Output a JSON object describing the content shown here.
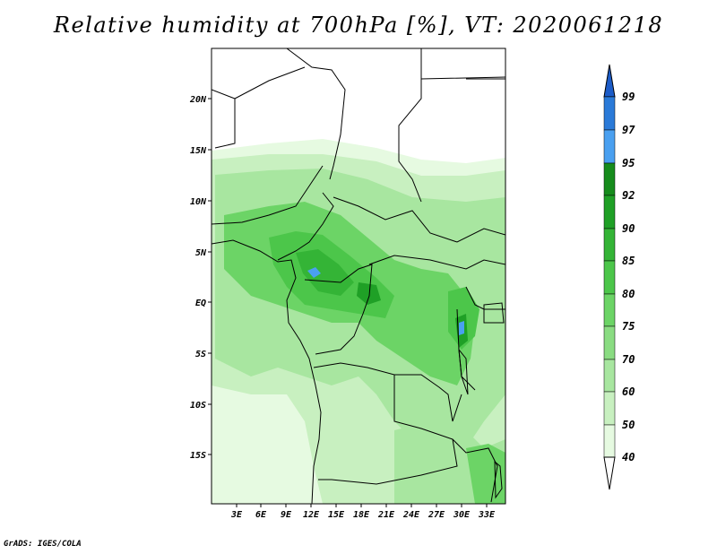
{
  "title": "Relative humidity at 700hPa [%], VT: 2020061218",
  "footer": "GrADS: IGES/COLA",
  "map": {
    "lon_range": [
      0,
      36
    ],
    "lat_range": [
      -20,
      25
    ],
    "lat_ticks": [
      {
        "value": 20,
        "label": "20N"
      },
      {
        "value": 15,
        "label": "15N"
      },
      {
        "value": 10,
        "label": "10N"
      },
      {
        "value": 5,
        "label": "5N"
      },
      {
        "value": 0,
        "label": "EQ"
      },
      {
        "value": -5,
        "label": "5S"
      },
      {
        "value": -10,
        "label": "10S"
      },
      {
        "value": -15,
        "label": "15S"
      }
    ],
    "lon_ticks": [
      {
        "value": 3,
        "label": "3E"
      },
      {
        "value": 6,
        "label": "6E"
      },
      {
        "value": 9,
        "label": "9E"
      },
      {
        "value": 12,
        "label": "12E"
      },
      {
        "value": 15,
        "label": "15E"
      },
      {
        "value": 18,
        "label": "18E"
      },
      {
        "value": 21,
        "label": "21E"
      },
      {
        "value": 24,
        "label": "24E"
      },
      {
        "value": 27,
        "label": "27E"
      },
      {
        "value": 30,
        "label": "30E"
      },
      {
        "value": 33,
        "label": "33E"
      }
    ]
  },
  "colorbar": {
    "levels": [
      {
        "label": "40",
        "color": "#ffffff"
      },
      {
        "label": "50",
        "color": "#e6fae1"
      },
      {
        "label": "60",
        "color": "#c8f0c0"
      },
      {
        "label": "70",
        "color": "#a8e6a0"
      },
      {
        "label": "75",
        "color": "#8adc82"
      },
      {
        "label": "80",
        "color": "#6cd466"
      },
      {
        "label": "85",
        "color": "#4cc64a"
      },
      {
        "label": "90",
        "color": "#34b436"
      },
      {
        "label": "92",
        "color": "#1fa026"
      },
      {
        "label": "95",
        "color": "#168c1c"
      },
      {
        "label": "97",
        "color": "#4aa0f0"
      },
      {
        "label": "99",
        "color": "#2a7ad8"
      }
    ],
    "top_color": "#1c5cc8"
  }
}
